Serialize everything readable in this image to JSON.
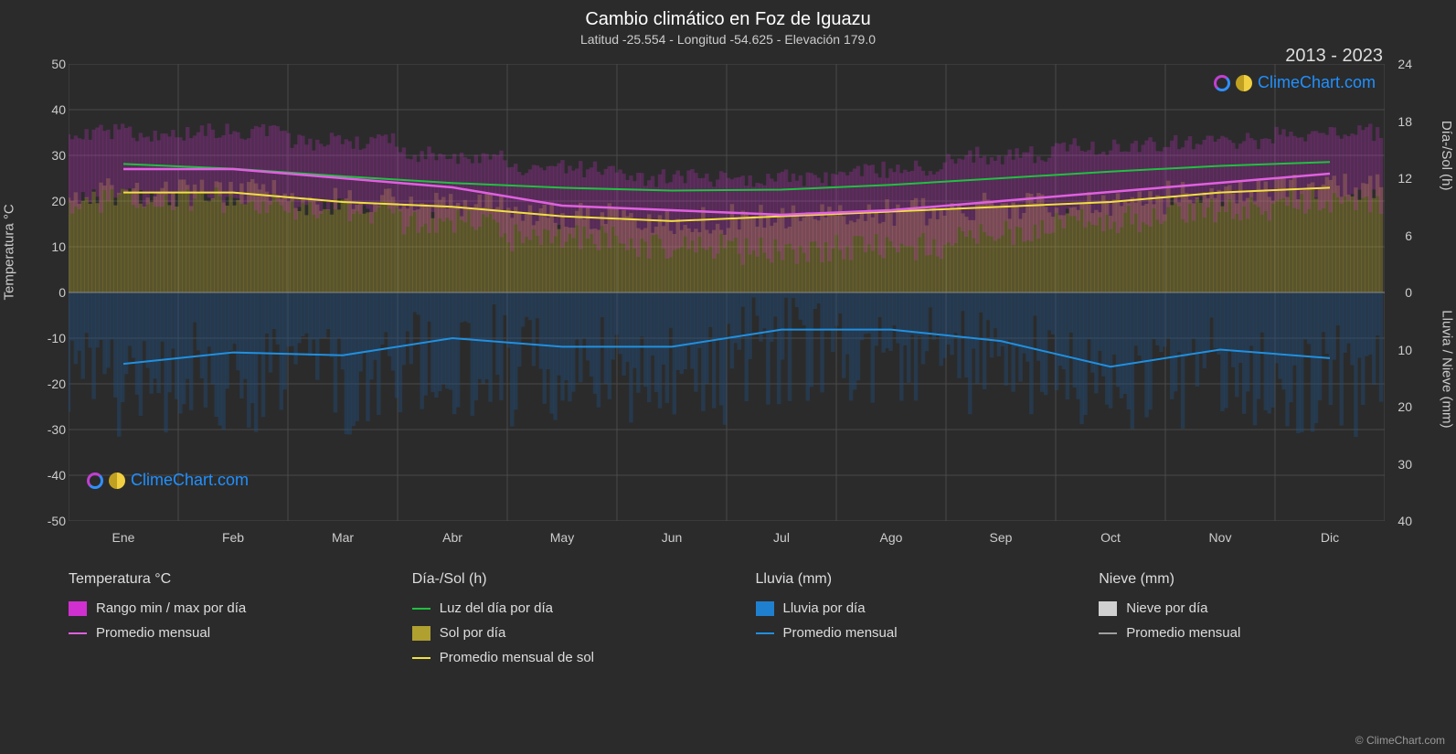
{
  "title": "Cambio climático en Foz de Iguazu",
  "subtitle": "Latitud -25.554 - Longitud -54.625 - Elevación 179.0",
  "date_range": "2013 - 2023",
  "watermark_text": "ClimeChart.com",
  "copyright": "© ClimeChart.com",
  "chart": {
    "background": "#2b2b2b",
    "grid_color": "#4a4a4a",
    "axis_left": {
      "label": "Temperatura °C",
      "min": -50,
      "max": 50,
      "ticks": [
        -50,
        -40,
        -30,
        -20,
        -10,
        0,
        10,
        20,
        30,
        40,
        50
      ]
    },
    "axis_right_top": {
      "label": "Día-/Sol (h)",
      "min": 0,
      "max": 24,
      "ticks": [
        0,
        6,
        12,
        18,
        24
      ]
    },
    "axis_right_bottom": {
      "label": "Lluvia / Nieve (mm)",
      "min": 0,
      "max": 40,
      "ticks": [
        0,
        10,
        20,
        30,
        40
      ]
    },
    "months": [
      "Ene",
      "Feb",
      "Mar",
      "Abr",
      "May",
      "Jun",
      "Jul",
      "Ago",
      "Sep",
      "Oct",
      "Nov",
      "Dic"
    ],
    "temp_avg": [
      27,
      27,
      25,
      23,
      19,
      18,
      17,
      18,
      20,
      22,
      24,
      26
    ],
    "temp_band_low": [
      20,
      20,
      18,
      15,
      12,
      10,
      9,
      10,
      13,
      16,
      18,
      20
    ],
    "temp_band_high": [
      35,
      35,
      33,
      30,
      27,
      25,
      25,
      27,
      30,
      32,
      33,
      35
    ],
    "temp_band_color": "#d030d0",
    "temp_line_color": "#e060e0",
    "daylight": [
      13.5,
      13.0,
      12.2,
      11.5,
      11.0,
      10.7,
      10.8,
      11.3,
      12.0,
      12.7,
      13.3,
      13.7
    ],
    "daylight_color": "#20c040",
    "sun_hours": [
      10.5,
      10.5,
      9.5,
      9.0,
      8.0,
      7.5,
      8.0,
      8.5,
      9.0,
      9.5,
      10.5,
      11.0
    ],
    "sun_line_color": "#f0e040",
    "sun_fill_color": "#b0a030",
    "rain_avg": [
      12.5,
      10.5,
      11.0,
      8.0,
      9.5,
      9.5,
      6.5,
      6.5,
      8.5,
      13.0,
      10.0,
      11.5
    ],
    "rain_line_color": "#2090e0",
    "rain_fill_color": "#205080",
    "watermark_color": "#2090ff"
  },
  "legend": {
    "columns": [
      {
        "header": "Temperatura °C",
        "items": [
          {
            "type": "swatch",
            "color": "#d030d0",
            "label": "Rango min / max por día"
          },
          {
            "type": "line",
            "color": "#e060e0",
            "label": "Promedio mensual"
          }
        ]
      },
      {
        "header": "Día-/Sol (h)",
        "items": [
          {
            "type": "line",
            "color": "#20c040",
            "label": "Luz del día por día"
          },
          {
            "type": "swatch",
            "color": "#b0a030",
            "label": "Sol por día"
          },
          {
            "type": "line",
            "color": "#f0e040",
            "label": "Promedio mensual de sol"
          }
        ]
      },
      {
        "header": "Lluvia (mm)",
        "items": [
          {
            "type": "swatch",
            "color": "#2080d0",
            "label": "Lluvia por día"
          },
          {
            "type": "line",
            "color": "#2090e0",
            "label": "Promedio mensual"
          }
        ]
      },
      {
        "header": "Nieve (mm)",
        "items": [
          {
            "type": "swatch",
            "color": "#d0d0d0",
            "label": "Nieve por día"
          },
          {
            "type": "line",
            "color": "#a0a0a0",
            "label": "Promedio mensual"
          }
        ]
      }
    ]
  }
}
